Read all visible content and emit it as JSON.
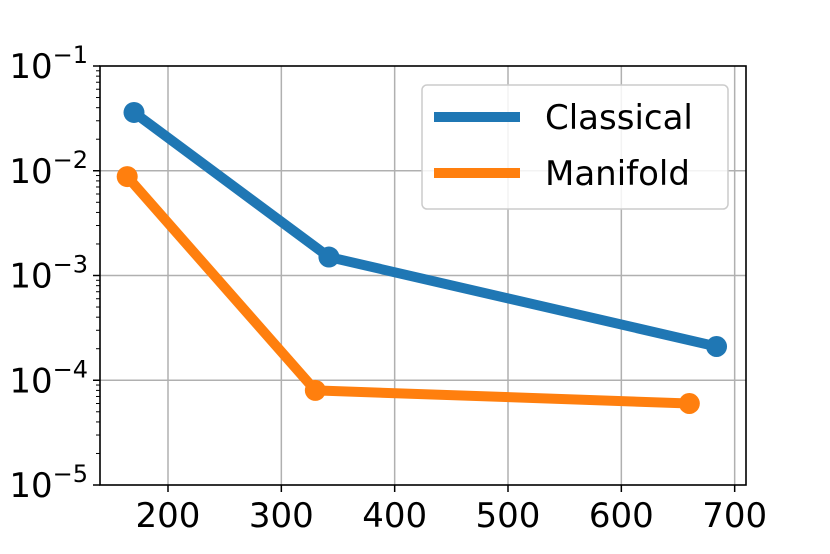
{
  "chart_data": {
    "type": "line",
    "title": "",
    "xlabel": "",
    "ylabel": "",
    "xlim": [
      140,
      710
    ],
    "ylim": [
      1e-05,
      0.1
    ],
    "yscale": "log",
    "grid": true,
    "legend_placement": "top-right",
    "x_ticks": [
      "200",
      "300",
      "400",
      "500",
      "600",
      "700"
    ],
    "x_tick_values": [
      200,
      300,
      400,
      500,
      600,
      700
    ],
    "y_ticks": [
      {
        "base": "10",
        "exp": "−5",
        "value": 1e-05
      },
      {
        "base": "10",
        "exp": "−4",
        "value": 0.0001
      },
      {
        "base": "10",
        "exp": "−3",
        "value": 0.001
      },
      {
        "base": "10",
        "exp": "−2",
        "value": 0.01
      },
      {
        "base": "10",
        "exp": "−1",
        "value": 0.1
      }
    ],
    "series": [
      {
        "name": "Classical",
        "color": "#1f77b4",
        "x": [
          170,
          342,
          684
        ],
        "y": [
          0.036,
          0.0015,
          0.00021
        ]
      },
      {
        "name": "Manifold",
        "color": "#ff7f0e",
        "x": [
          164,
          330,
          660
        ],
        "y": [
          0.0088,
          8e-05,
          6e-05
        ]
      }
    ]
  }
}
